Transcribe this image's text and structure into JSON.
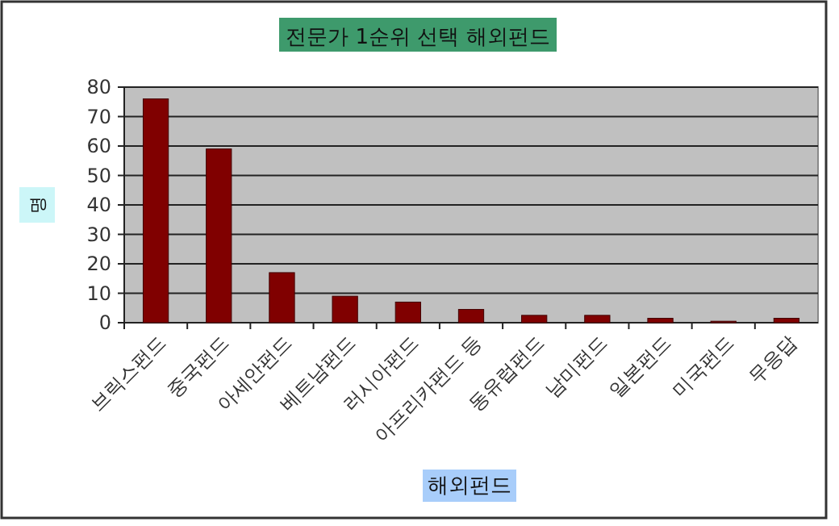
{
  "chart_data": {
    "type": "bar",
    "title": "전문가 1순위 선택 해외펀드",
    "xlabel": "해외펀드",
    "ylabel": "명",
    "categories": [
      "브릭스펀드",
      "중국펀드",
      "아세안펀드",
      "베트남펀드",
      "러시아펀드",
      "아프리카펀드 등",
      "동유럽펀드",
      "남미펀드",
      "일본펀드",
      "미국펀드",
      "무응답"
    ],
    "values": [
      76,
      59,
      17,
      9,
      7,
      4.5,
      2.5,
      2.5,
      1.5,
      0.5,
      1.5
    ],
    "color": "#800000",
    "ylim": [
      0,
      80
    ],
    "yticks": [
      0,
      10,
      20,
      30,
      40,
      50,
      60,
      70,
      80
    ],
    "grid": "y"
  }
}
